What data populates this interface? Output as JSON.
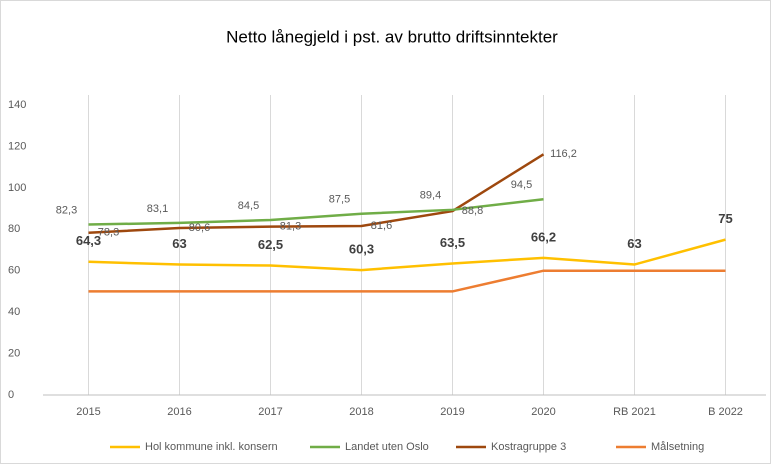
{
  "chart_data": {
    "type": "line",
    "title": "Netto lånegjeld  i pst. av brutto driftsinntekter",
    "categories": [
      "2015",
      "2016",
      "2017",
      "2018",
      "2019",
      "2020",
      "RB 2021",
      "B 2022"
    ],
    "series": [
      {
        "name": "Hol kommune inkl. konsern",
        "color": "#ffc000",
        "values": [
          64.3,
          63,
          62.5,
          60.3,
          63.5,
          66.2,
          63,
          75
        ],
        "value_labels": [
          "64,3",
          "63",
          "62,5",
          "60,3",
          "63,5",
          "66,2",
          "63",
          "75"
        ]
      },
      {
        "name": "Landet uten Oslo",
        "color": "#70ad47",
        "values": [
          82.3,
          83.1,
          84.5,
          87.5,
          89.4,
          94.5,
          null,
          null
        ],
        "value_labels": [
          "82,3",
          "83,1",
          "84,5",
          "87,5",
          "89,4",
          "94,5",
          null,
          null
        ]
      },
      {
        "name": "Kostragruppe 3",
        "color": "#9e480e",
        "values": [
          78.3,
          80.6,
          81.3,
          81.6,
          88.8,
          116.2,
          null,
          null
        ],
        "value_labels": [
          "78,3",
          "80,6",
          "81,3",
          "81,6",
          "88,8",
          "116,2",
          null,
          null
        ]
      },
      {
        "name": "Målsetning",
        "color": "#ed7d31",
        "values": [
          50,
          50,
          50,
          50,
          50,
          60,
          60,
          60
        ]
      }
    ],
    "ylim": [
      0,
      140
    ],
    "yticks": [
      0,
      20,
      40,
      60,
      80,
      100,
      120,
      140
    ],
    "grid": true
  }
}
